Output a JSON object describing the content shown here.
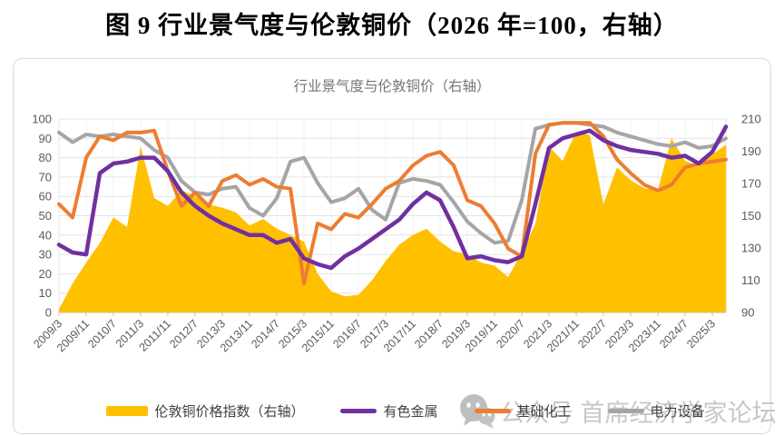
{
  "page": {
    "figure_title": "图 9 行业景气度与伦敦铜价（2026 年=100，右轴）",
    "watermark_text": "公众号 首席经济学家论坛"
  },
  "chart_data": {
    "type": "area",
    "subtype": "combo-area-line",
    "title": "行业景气度与伦敦铜价（右轴）",
    "grid": "on",
    "legend_position": "bottom",
    "left_axis": {
      "min": 0,
      "max": 100,
      "step": 10,
      "ticks": [
        0,
        10,
        20,
        30,
        40,
        50,
        60,
        70,
        80,
        90,
        100
      ]
    },
    "right_axis": {
      "min": 90,
      "max": 210,
      "step": 20,
      "ticks": [
        90,
        110,
        130,
        150,
        170,
        190,
        210
      ]
    },
    "x_tick_labels": [
      "2009/3",
      "2009/11",
      "2010/7",
      "2011/3",
      "2011/11",
      "2012/7",
      "2013/3",
      "2013/11",
      "2014/7",
      "2015/3",
      "2015/11",
      "2016/7",
      "2017/3",
      "2017/11",
      "2018/7",
      "2019/3",
      "2019/11",
      "2020/7",
      "2021/3",
      "2021/11",
      "2022/7",
      "2023/3",
      "2023/11",
      "2024/7",
      "2025/3"
    ],
    "sample_dates": [
      "2009/3",
      "2009/7",
      "2009/11",
      "2010/3",
      "2010/7",
      "2010/11",
      "2011/3",
      "2011/7",
      "2011/11",
      "2012/3",
      "2012/7",
      "2012/11",
      "2013/3",
      "2013/7",
      "2013/11",
      "2014/3",
      "2014/7",
      "2014/11",
      "2015/3",
      "2015/7",
      "2015/11",
      "2016/3",
      "2016/7",
      "2016/11",
      "2017/3",
      "2017/7",
      "2017/11",
      "2018/3",
      "2018/7",
      "2018/11",
      "2019/3",
      "2019/7",
      "2019/11",
      "2020/3",
      "2020/7",
      "2020/11",
      "2021/3",
      "2021/7",
      "2021/11",
      "2022/3",
      "2022/7",
      "2022/11",
      "2023/3",
      "2023/7",
      "2023/11",
      "2024/3",
      "2024/7",
      "2024/11",
      "2025/3",
      "2025/6"
    ],
    "series": [
      {
        "name": "伦敦铜价格指数（右轴）",
        "type": "area",
        "axis": "right",
        "color": "#FFC000",
        "values": [
          92,
          108,
          121,
          133,
          149,
          143,
          193,
          161,
          156,
          166,
          162,
          157,
          155,
          152,
          144,
          148,
          142,
          138,
          134,
          114,
          103,
          100,
          101,
          110,
          122,
          132,
          138,
          142,
          134,
          128,
          126,
          121,
          119,
          112,
          127,
          145,
          193,
          184,
          202,
          200,
          157,
          180,
          172,
          167,
          166,
          198,
          184,
          181,
          188,
          194
        ]
      },
      {
        "name": "有色金属",
        "type": "line",
        "axis": "left",
        "color": "#7030A0",
        "values": [
          35,
          31,
          30,
          72,
          77,
          78,
          80,
          80,
          73,
          62,
          55,
          50,
          46,
          43,
          40,
          40,
          36,
          38,
          28,
          25,
          23,
          29,
          33,
          38,
          43,
          48,
          56,
          62,
          58,
          44,
          28,
          29,
          27,
          26,
          29,
          56,
          85,
          90,
          92,
          94,
          89,
          86,
          84,
          83,
          82,
          80,
          81,
          77,
          83,
          96
        ]
      },
      {
        "name": "基础化工",
        "type": "line",
        "axis": "left",
        "color": "#ED7D31",
        "values": [
          56,
          49,
          80,
          91,
          89,
          93,
          93,
          94,
          73,
          55,
          62,
          55,
          68,
          71,
          66,
          69,
          65,
          64,
          15,
          46,
          43,
          51,
          49,
          56,
          64,
          68,
          76,
          81,
          83,
          76,
          58,
          55,
          46,
          33,
          29,
          82,
          97,
          98,
          98,
          98,
          91,
          79,
          72,
          66,
          63,
          66,
          75,
          77,
          78,
          79
        ]
      },
      {
        "name": "电力设备",
        "type": "line",
        "axis": "left",
        "color": "#A5A5A5",
        "values": [
          93,
          88,
          92,
          91,
          92,
          91,
          90,
          84,
          80,
          68,
          62,
          61,
          64,
          65,
          54,
          50,
          59,
          78,
          80,
          67,
          57,
          59,
          64,
          53,
          48,
          67,
          69,
          68,
          66,
          57,
          47,
          41,
          36,
          37,
          58,
          95,
          97,
          98,
          98,
          97,
          96,
          93,
          91,
          89,
          87,
          86,
          88,
          85,
          86,
          90
        ]
      }
    ]
  }
}
